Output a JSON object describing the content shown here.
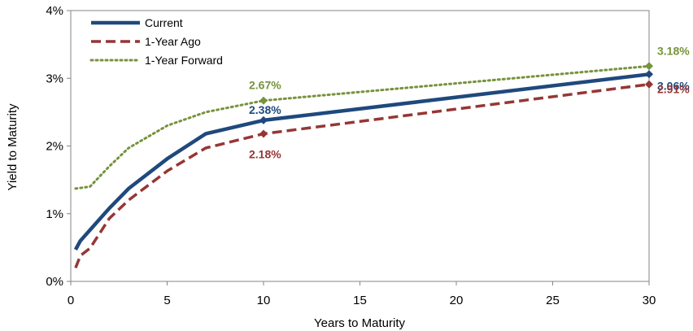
{
  "chart_data": {
    "type": "line",
    "xlabel": "Years to Maturity",
    "ylabel": "Yield to Maturity",
    "xlim": [
      0,
      30
    ],
    "ylim": [
      0,
      4
    ],
    "xticks": [
      0,
      5,
      10,
      15,
      20,
      25,
      30
    ],
    "yticks": [
      0,
      1,
      2,
      3,
      4
    ],
    "xtick_labels": [
      "0",
      "5",
      "10",
      "15",
      "20",
      "25",
      "30"
    ],
    "ytick_labels": [
      "0%",
      "1%",
      "2%",
      "3%",
      "4%"
    ],
    "grid": false,
    "legend": "top-left",
    "series": [
      {
        "name": "Current",
        "color": "#1F497D",
        "style": "solid",
        "x": [
          0.25,
          0.5,
          1,
          2,
          3,
          5,
          7,
          10,
          30
        ],
        "y": [
          0.47,
          0.6,
          0.76,
          1.08,
          1.37,
          1.81,
          2.18,
          2.38,
          3.06
        ],
        "markers": [
          {
            "x": 10,
            "y": 2.38,
            "label": "2.38%"
          },
          {
            "x": 30,
            "y": 3.06,
            "label": "3.06%"
          }
        ]
      },
      {
        "name": "1-Year Ago",
        "color": "#953735",
        "style": "dashed",
        "x": [
          0.25,
          0.5,
          1,
          2,
          3,
          5,
          7,
          10,
          30
        ],
        "y": [
          0.2,
          0.38,
          0.49,
          0.93,
          1.2,
          1.63,
          1.97,
          2.18,
          2.91
        ],
        "markers": [
          {
            "x": 10,
            "y": 2.18,
            "label": "2.18%"
          },
          {
            "x": 30,
            "y": 2.91,
            "label": "2.91%"
          }
        ]
      },
      {
        "name": "1-Year Forward",
        "color": "#77933C",
        "style": "dotted",
        "x": [
          0.25,
          0.5,
          1,
          2,
          3,
          5,
          7,
          10,
          30
        ],
        "y": [
          1.37,
          1.38,
          1.4,
          1.7,
          1.97,
          2.3,
          2.5,
          2.67,
          3.18
        ],
        "markers": [
          {
            "x": 10,
            "y": 2.67,
            "label": "2.67%"
          },
          {
            "x": 30,
            "y": 3.18,
            "label": "3.18%"
          }
        ]
      }
    ]
  }
}
